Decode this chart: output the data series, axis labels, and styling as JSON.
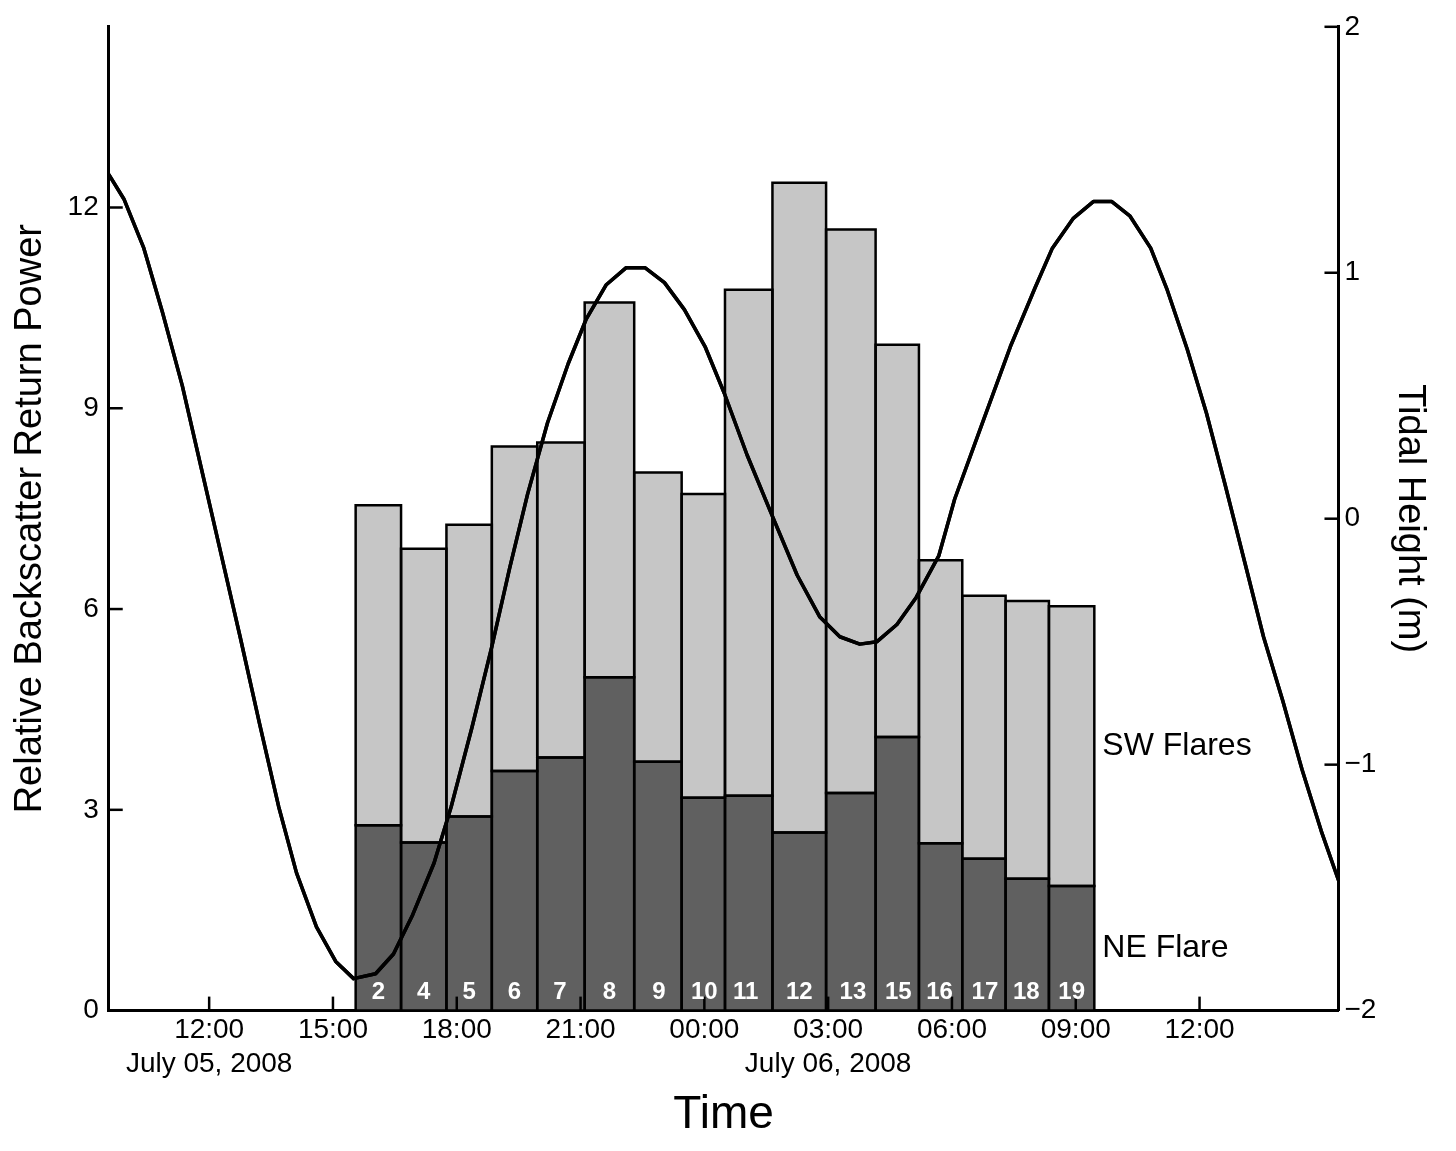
{
  "chart_data": {
    "type": "bar",
    "stacked": true,
    "xlabel": "Time",
    "ylabel": "Relative Backscatter Return Power",
    "y2label": "Tidal Height (m)",
    "x": [
      "2008-07-05T16:06",
      "2008-07-05T17:12",
      "2008-07-05T18:18",
      "2008-07-05T19:24",
      "2008-07-05T20:30",
      "2008-07-05T21:42",
      "2008-07-05T22:54",
      "2008-07-06T00:00",
      "2008-07-06T01:00",
      "2008-07-06T02:18",
      "2008-07-06T03:36",
      "2008-07-06T04:42",
      "2008-07-06T05:42",
      "2008-07-06T06:48",
      "2008-07-06T07:48",
      "2008-07-06T08:54"
    ],
    "series": [
      {
        "name": "NE Flare",
        "color": "#606060",
        "values": [
          2.77,
          2.51,
          2.9,
          3.58,
          3.78,
          4.98,
          3.72,
          3.18,
          3.21,
          2.66,
          3.25,
          4.09,
          2.5,
          2.27,
          1.97,
          1.86
        ]
      },
      {
        "name": "SW Flares",
        "color": "#c6c6c6",
        "values": [
          4.78,
          4.39,
          4.36,
          4.85,
          4.71,
          5.6,
          4.32,
          4.54,
          7.56,
          9.71,
          8.42,
          5.86,
          4.23,
          3.93,
          4.15,
          4.18
        ]
      },
      {
        "type": "line",
        "axis": "y2",
        "color": "#000000",
        "x": [
          "2008-07-05T09:34",
          "2008-07-05T09:56",
          "2008-07-05T10:25",
          "2008-07-05T10:52",
          "2008-07-05T11:21",
          "2008-07-05T11:49",
          "2008-07-05T12:17",
          "2008-07-05T12:45",
          "2008-07-05T13:13",
          "2008-07-05T13:41",
          "2008-07-05T14:07",
          "2008-07-05T14:36",
          "2008-07-05T15:04",
          "2008-07-05T15:30",
          "2008-07-05T16:02",
          "2008-07-05T16:28",
          "2008-07-05T16:56",
          "2008-07-05T17:27",
          "2008-07-05T17:52",
          "2008-07-05T18:22",
          "2008-07-05T18:51",
          "2008-07-05T19:17",
          "2008-07-05T19:43",
          "2008-07-05T20:12",
          "2008-07-05T20:42",
          "2008-07-05T21:08",
          "2008-07-05T21:37",
          "2008-07-05T22:06",
          "2008-07-05T22:34",
          "2008-07-05T23:02",
          "2008-07-05T23:31",
          "2008-07-06T00:01",
          "2008-07-06T00:29",
          "2008-07-06T01:02",
          "2008-07-06T01:36",
          "2008-07-06T02:15",
          "2008-07-06T02:48",
          "2008-07-06T03:17",
          "2008-07-06T03:46",
          "2008-07-06T04:11",
          "2008-07-06T04:40",
          "2008-07-06T05:08",
          "2008-07-06T05:41",
          "2008-07-06T06:04",
          "2008-07-06T06:47",
          "2008-07-06T07:25",
          "2008-07-06T08:01",
          "2008-07-06T08:26",
          "2008-07-06T08:56",
          "2008-07-06T09:26",
          "2008-07-06T09:52",
          "2008-07-06T10:19",
          "2008-07-06T10:49",
          "2008-07-06T11:13",
          "2008-07-06T11:42",
          "2008-07-06T12:10",
          "2008-07-06T12:37",
          "2008-07-06T13:06",
          "2008-07-06T13:33",
          "2008-07-06T14:01",
          "2008-07-06T14:29",
          "2008-07-06T14:57",
          "2008-07-06T15:22"
        ],
        "values": [
          1.4,
          1.3,
          1.1,
          0.84,
          0.54,
          0.2,
          -0.14,
          -0.48,
          -0.83,
          -1.17,
          -1.44,
          -1.66,
          -1.8,
          -1.87,
          -1.85,
          -1.77,
          -1.61,
          -1.4,
          -1.17,
          -0.85,
          -0.52,
          -0.2,
          0.1,
          0.39,
          0.63,
          0.81,
          0.95,
          1.02,
          1.02,
          0.96,
          0.85,
          0.7,
          0.51,
          0.26,
          0.03,
          -0.23,
          -0.4,
          -0.48,
          -0.51,
          -0.5,
          -0.43,
          -0.32,
          -0.15,
          0.08,
          0.41,
          0.7,
          0.94,
          1.1,
          1.22,
          1.29,
          1.29,
          1.23,
          1.1,
          0.93,
          0.69,
          0.43,
          0.14,
          -0.18,
          -0.48,
          -0.74,
          -1.02,
          -1.27,
          -1.47
        ]
      }
    ],
    "xlim": [
      "2008-07-05T09:34",
      "2008-07-06T15:22"
    ],
    "xticks": [
      {
        "value": "2008-07-05T12:00",
        "label": "12:00\nJuly 05, 2008"
      },
      {
        "value": "2008-07-05T15:00",
        "label": "15:00"
      },
      {
        "value": "2008-07-05T18:00",
        "label": "18:00"
      },
      {
        "value": "2008-07-05T21:00",
        "label": "21:00"
      },
      {
        "value": "2008-07-06T00:00",
        "label": "00:00"
      },
      {
        "value": "2008-07-06T03:00",
        "label": "03:00\nJuly 06, 2008"
      },
      {
        "value": "2008-07-06T06:00",
        "label": "06:00"
      },
      {
        "value": "2008-07-06T09:00",
        "label": "09:00"
      },
      {
        "value": "2008-07-06T12:00",
        "label": "12:00"
      }
    ],
    "ylim": [
      0,
      14.7
    ],
    "yticks": [
      0,
      3,
      6,
      9,
      12
    ],
    "y2lim": [
      -2,
      2
    ],
    "y2ticks": [
      {
        "value": -2,
        "label": "−2"
      },
      {
        "value": -1,
        "label": "−1"
      },
      0,
      1,
      2
    ],
    "annotations": [
      {
        "text": "2",
        "x": "2008-07-05T16:06",
        "y": 0
      },
      {
        "text": "4",
        "x": "2008-07-05T17:12",
        "y": 0
      },
      {
        "text": "5",
        "x": "2008-07-05T18:18",
        "y": 0
      },
      {
        "text": "6",
        "x": "2008-07-05T19:24",
        "y": 0
      },
      {
        "text": "7",
        "x": "2008-07-05T20:30",
        "y": 0
      },
      {
        "text": "8",
        "x": "2008-07-05T21:42",
        "y": 0
      },
      {
        "text": "9",
        "x": "2008-07-05T22:54",
        "y": 0
      },
      {
        "text": "10",
        "x": "2008-07-06T00:00",
        "y": 0
      },
      {
        "text": "11",
        "x": "2008-07-06T01:00",
        "y": 0
      },
      {
        "text": "12",
        "x": "2008-07-06T02:18",
        "y": 0
      },
      {
        "text": "13",
        "x": "2008-07-06T03:36",
        "y": 0
      },
      {
        "text": "15",
        "x": "2008-07-06T04:42",
        "y": 0
      },
      {
        "text": "16",
        "x": "2008-07-06T05:42",
        "y": 0
      },
      {
        "text": "17",
        "x": "2008-07-06T06:48",
        "y": 0
      },
      {
        "text": "18",
        "x": "2008-07-06T07:48",
        "y": 0
      },
      {
        "text": "19",
        "x": "2008-07-06T08:54",
        "y": 0
      }
    ]
  }
}
